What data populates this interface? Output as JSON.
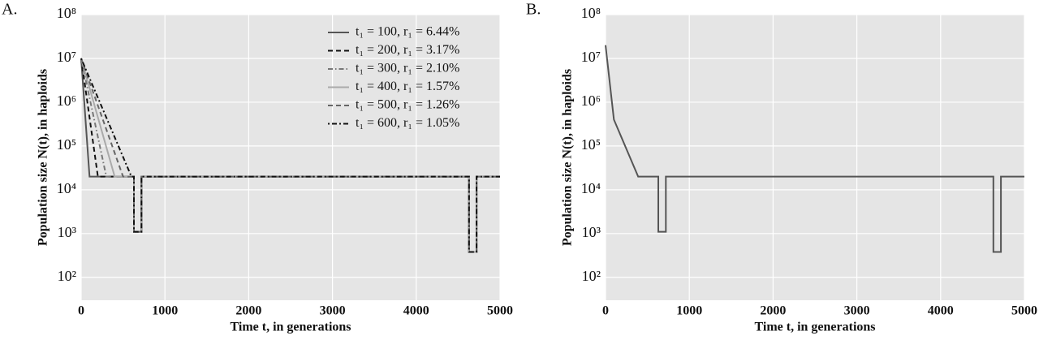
{
  "chart_data": [
    {
      "type": "line",
      "panel_label": "A.",
      "xlabel": "Time t, in generations",
      "ylabel": "Population size N(t), in haploids",
      "log_y": true,
      "grid": true,
      "background": "#e5e5e5",
      "legend": "upper right",
      "xlim": [
        0,
        5000
      ],
      "xticks": [
        0,
        1000,
        2000,
        3000,
        4000,
        5000
      ],
      "ylim": [
        30,
        100000000
      ],
      "yticks": [
        {
          "value": 100,
          "label": "10²"
        },
        {
          "value": 1000,
          "label": "10³"
        },
        {
          "value": 10000,
          "label": "10⁴"
        },
        {
          "value": 100000,
          "label": "10⁵"
        },
        {
          "value": 1000000,
          "label": "10⁶"
        },
        {
          "value": 10000000,
          "label": "10⁷"
        },
        {
          "value": 100000000,
          "label": "10⁸"
        }
      ],
      "series": [
        {
          "name": "t₁ = 100, r₁ = 6.44%",
          "color": "#555555",
          "dash": "none",
          "x": [
            0,
            100,
            630,
            630,
            720,
            720,
            4630,
            4630,
            4720,
            4720,
            5000
          ],
          "values": [
            10000000,
            20000,
            20000,
            1100,
            1100,
            20000,
            20000,
            380,
            380,
            20000,
            20000
          ]
        },
        {
          "name": "t₁ = 200, r₁ = 3.17%",
          "color": "#111111",
          "dash": "6,4",
          "x": [
            0,
            200,
            630,
            630,
            720,
            720,
            4630,
            4630,
            4720,
            4720,
            5000
          ],
          "values": [
            10000000,
            20000,
            20000,
            1100,
            1100,
            20000,
            20000,
            380,
            380,
            20000,
            20000
          ]
        },
        {
          "name": "t₁ = 300, r₁ = 2.10%",
          "color": "#777777",
          "dash": "6,3,1.5,3",
          "x": [
            0,
            300,
            630,
            630,
            720,
            720,
            4630,
            4630,
            4720,
            4720,
            5000
          ],
          "values": [
            10000000,
            20000,
            20000,
            1100,
            1100,
            20000,
            20000,
            380,
            380,
            20000,
            20000
          ]
        },
        {
          "name": "t₁ = 400, r₁ = 1.57%",
          "color": "#aaaaaa",
          "dash": "none",
          "x": [
            0,
            400,
            630,
            630,
            720,
            720,
            4630,
            4630,
            4720,
            4720,
            5000
          ],
          "values": [
            10000000,
            20000,
            20000,
            1100,
            1100,
            20000,
            20000,
            380,
            380,
            20000,
            20000
          ]
        },
        {
          "name": "t₁ = 500, r₁ = 1.26%",
          "color": "#666666",
          "dash": "6,4",
          "x": [
            0,
            500,
            630,
            630,
            720,
            720,
            4630,
            4630,
            4720,
            4720,
            5000
          ],
          "values": [
            10000000,
            20000,
            20000,
            1100,
            1100,
            20000,
            20000,
            380,
            380,
            20000,
            20000
          ]
        },
        {
          "name": "t₁ = 600, r₁ = 1.05%",
          "color": "#111111",
          "dash": "2,3,6,3",
          "x": [
            0,
            600,
            630,
            630,
            720,
            720,
            4630,
            4630,
            4720,
            4720,
            5000
          ],
          "values": [
            10000000,
            20000,
            20000,
            1100,
            1100,
            20000,
            20000,
            380,
            380,
            20000,
            20000
          ]
        }
      ]
    },
    {
      "type": "line",
      "panel_label": "B.",
      "xlabel": "Time t, in generations",
      "ylabel": "Population size N(t), in haploids",
      "log_y": true,
      "grid": true,
      "background": "#e5e5e5",
      "xlim": [
        0,
        5000
      ],
      "xticks": [
        0,
        1000,
        2000,
        3000,
        4000,
        5000
      ],
      "ylim": [
        30,
        100000000
      ],
      "yticks": [
        {
          "value": 100,
          "label": "10²"
        },
        {
          "value": 1000,
          "label": "10³"
        },
        {
          "value": 10000,
          "label": "10⁴"
        },
        {
          "value": 100000,
          "label": "10⁵"
        },
        {
          "value": 1000000,
          "label": "10⁶"
        },
        {
          "value": 10000000,
          "label": "10⁷"
        },
        {
          "value": 100000000,
          "label": "10⁸"
        }
      ],
      "series": [
        {
          "color": "#555555",
          "dash": "none",
          "x": [
            0,
            100,
            390,
            630,
            630,
            720,
            720,
            4630,
            4630,
            4720,
            4720,
            5000
          ],
          "values": [
            20000000,
            400000,
            20000,
            20000,
            1100,
            1100,
            20000,
            20000,
            380,
            380,
            20000,
            20000
          ]
        }
      ]
    }
  ]
}
